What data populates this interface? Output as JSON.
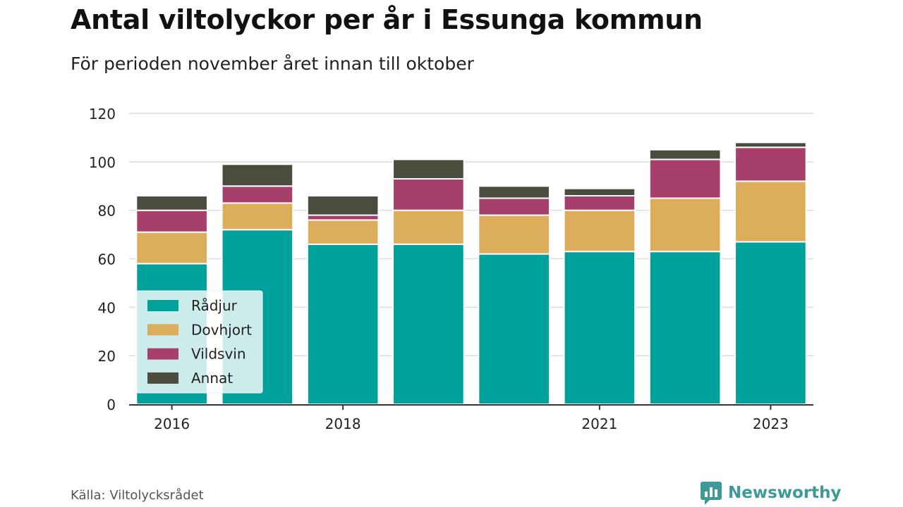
{
  "chart_data": {
    "type": "bar",
    "stacked": true,
    "title": "Antal viltolyckor per år i Essunga kommun",
    "subtitle": "För perioden november året innan till oktober",
    "x": [
      2016,
      2017,
      2018,
      2019,
      2020,
      2021,
      2022,
      2023
    ],
    "x_tick_labels": [
      "2016",
      "",
      "2018",
      "",
      "",
      "2021",
      "",
      "2023"
    ],
    "y_ticks": [
      "0",
      "20",
      "40",
      "60",
      "80",
      "100",
      "120"
    ],
    "ylim": [
      0,
      120
    ],
    "grid": true,
    "legend_position": "bottom-left",
    "series": [
      {
        "name": "Rådjur",
        "color": "#00a19a",
        "values": [
          58,
          72,
          66,
          66,
          62,
          63,
          63,
          67
        ]
      },
      {
        "name": "Dovhjort",
        "color": "#dcad5a",
        "values": [
          13,
          11,
          10,
          14,
          16,
          17,
          22,
          25
        ]
      },
      {
        "name": "Vildsvin",
        "color": "#a63f6a",
        "values": [
          9,
          7,
          2,
          13,
          7,
          6,
          16,
          14
        ]
      },
      {
        "name": "Annat",
        "color": "#4a4c3e",
        "values": [
          6,
          9,
          8,
          8,
          5,
          3,
          4,
          2
        ]
      }
    ]
  },
  "source": "Källa: Viltolycksrådet",
  "brand": {
    "name": "Newsworthy",
    "color": "#3d9a97",
    "icon": "newsworthy-logo-icon"
  }
}
